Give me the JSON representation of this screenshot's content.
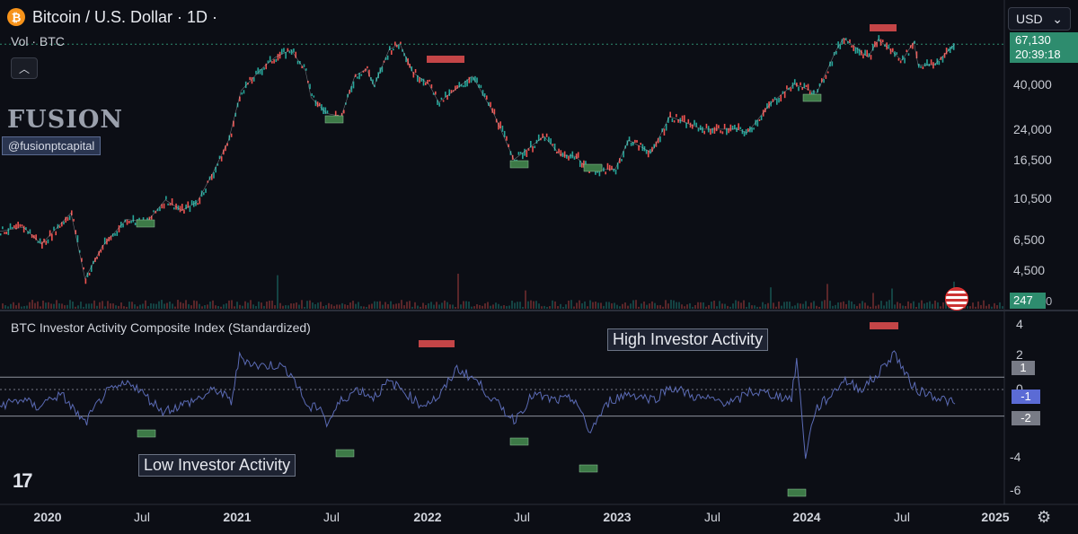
{
  "header": {
    "title": "Bitcoin / U.S. Dollar · 1D ·",
    "btc_symbol": "₿",
    "volume_label": "Vol · BTC",
    "collapse_icon": "chevron-up-icon",
    "currency": "USD",
    "current_price": "67,130",
    "countdown": "20:39:18",
    "volume_value": "247",
    "volume_value_cut": "0"
  },
  "watermark": {
    "brand": "FUSION",
    "handle": "@fusionptcapital"
  },
  "colors": {
    "background": "#0c0e15",
    "up_candle": "#26a69a",
    "down_candle": "#ef5350",
    "index_line": "#5b6bb5",
    "price_tag": "#2e8c6e",
    "low_marker": "#3d7a47",
    "high_marker": "#c44547"
  },
  "chart_data": [
    {
      "type": "line",
      "title": "Bitcoin / U.S. Dollar · 1D ·",
      "yscale": "log",
      "ylim": [
        3500,
        90000
      ],
      "y_ticks": [
        "40,000",
        "24,000",
        "16,500",
        "10,500",
        "6,500",
        "4,500"
      ],
      "x_ticks": [
        "2020",
        "Jul",
        "2021",
        "Jul",
        "2022",
        "Jul",
        "2023",
        "Jul",
        "2024",
        "Jul",
        "2025"
      ],
      "series": [
        {
          "x": [
            "2019-10-01",
            "2019-11-15",
            "2019-12-20",
            "2020-02-15",
            "2020-03-13",
            "2020-04-15",
            "2020-06-01",
            "2020-07-10",
            "2020-08-15",
            "2020-09-15",
            "2020-10-15",
            "2020-11-15",
            "2020-12-15",
            "2021-01-08",
            "2021-02-20",
            "2021-03-15",
            "2021-04-14",
            "2021-05-12",
            "2021-05-23",
            "2021-06-22",
            "2021-07-20",
            "2021-08-15",
            "2021-09-07",
            "2021-09-21",
            "2021-10-20",
            "2021-11-10",
            "2021-12-05",
            "2022-01-05",
            "2022-01-24",
            "2022-03-30",
            "2022-05-10",
            "2022-06-18",
            "2022-08-15",
            "2022-09-15",
            "2022-10-15",
            "2022-11-09",
            "2022-12-30",
            "2023-01-25",
            "2023-03-10",
            "2023-04-14",
            "2023-06-15",
            "2023-08-20",
            "2023-09-11",
            "2023-10-25",
            "2023-12-10",
            "2024-01-23",
            "2024-02-28",
            "2024-03-14",
            "2024-05-01",
            "2024-05-20",
            "2024-07-05",
            "2024-07-28",
            "2024-08-05",
            "2024-09-06",
            "2024-10-01",
            "2024-10-15"
          ],
          "y": [
            8300,
            8700,
            7200,
            10200,
            4900,
            7000,
            9500,
            9200,
            11800,
            10500,
            11500,
            16000,
            23000,
            40000,
            52000,
            58000,
            63000,
            50000,
            37000,
            31000,
            30000,
            47000,
            51000,
            42000,
            63000,
            67500,
            49000,
            43000,
            35000,
            47000,
            31000,
            18500,
            24000,
            19500,
            19200,
            16500,
            16600,
            23000,
            20000,
            30000,
            26000,
            26000,
            25000,
            34500,
            43000,
            39000,
            62000,
            72000,
            58000,
            71000,
            56000,
            69000,
            53000,
            53500,
            62000,
            67130
          ]
        }
      ],
      "volume_label": "Vol · BTC"
    },
    {
      "type": "line",
      "title": "BTC Investor Activity Composite Index (Standardized)",
      "ylim": [
        -6.5,
        4.5
      ],
      "y_ticks": [
        "4",
        "2",
        "0",
        "-4",
        "-6"
      ],
      "band_values": [
        1,
        -2
      ],
      "current_value": "-1",
      "series": [
        {
          "x": [
            "2019-10-01",
            "2019-11-15",
            "2019-12-10",
            "2020-01-15",
            "2020-02-01",
            "2020-03-13",
            "2020-04-20",
            "2020-06-10",
            "2020-07-05",
            "2020-08-10",
            "2020-09-10",
            "2020-10-25",
            "2020-11-20",
            "2020-12-20",
            "2021-01-05",
            "2021-02-10",
            "2021-03-20",
            "2021-04-14",
            "2021-05-19",
            "2021-06-10",
            "2021-06-22",
            "2021-07-20",
            "2021-08-20",
            "2021-09-20",
            "2021-10-20",
            "2021-11-10",
            "2021-12-20",
            "2022-01-25",
            "2022-02-28",
            "2022-04-05",
            "2022-05-12",
            "2022-06-18",
            "2022-07-25",
            "2022-09-05",
            "2022-10-15",
            "2022-11-09",
            "2022-12-20",
            "2023-01-25",
            "2023-03-15",
            "2023-04-15",
            "2023-06-10",
            "2023-08-17",
            "2023-09-15",
            "2023-10-20",
            "2023-11-20",
            "2023-12-05",
            "2023-12-15",
            "2024-01-01",
            "2024-01-20",
            "2024-02-20",
            "2024-03-14",
            "2024-04-15",
            "2024-05-15",
            "2024-06-20",
            "2024-07-20",
            "2024-08-05",
            "2024-09-06",
            "2024-10-15"
          ],
          "y": [
            -1.2,
            -0.7,
            -1.4,
            -0.4,
            -0.5,
            -2.8,
            -0.2,
            0.8,
            -0.3,
            -1.7,
            -1.3,
            -0.5,
            0.2,
            -0.9,
            3.0,
            2.2,
            2.3,
            1.6,
            -1.6,
            -1.2,
            -2.9,
            -0.8,
            0.2,
            -0.5,
            0.8,
            0.3,
            -1.2,
            -0.5,
            2.0,
            1.0,
            -0.9,
            -2.5,
            -0.3,
            -0.8,
            -0.7,
            -3.6,
            -0.8,
            -0.2,
            -0.7,
            0.4,
            -0.6,
            -1.0,
            0.0,
            -0.2,
            -0.5,
            -0.6,
            2.8,
            -5.6,
            -1.6,
            -0.3,
            1.0,
            0.2,
            1.2,
            3.4,
            0.8,
            0.1,
            -0.4,
            -1.1
          ]
        }
      ],
      "annotations": {
        "high": "High Investor Activity",
        "low": "Low Investor Activity"
      },
      "x_ticks": [
        "2020",
        "Jul",
        "2021",
        "Jul",
        "2022",
        "Jul",
        "2023",
        "Jul",
        "2024",
        "Jul",
        "2025"
      ]
    }
  ],
  "footer": {
    "tradingview_logo": "17",
    "settings_icon": "⚙"
  }
}
